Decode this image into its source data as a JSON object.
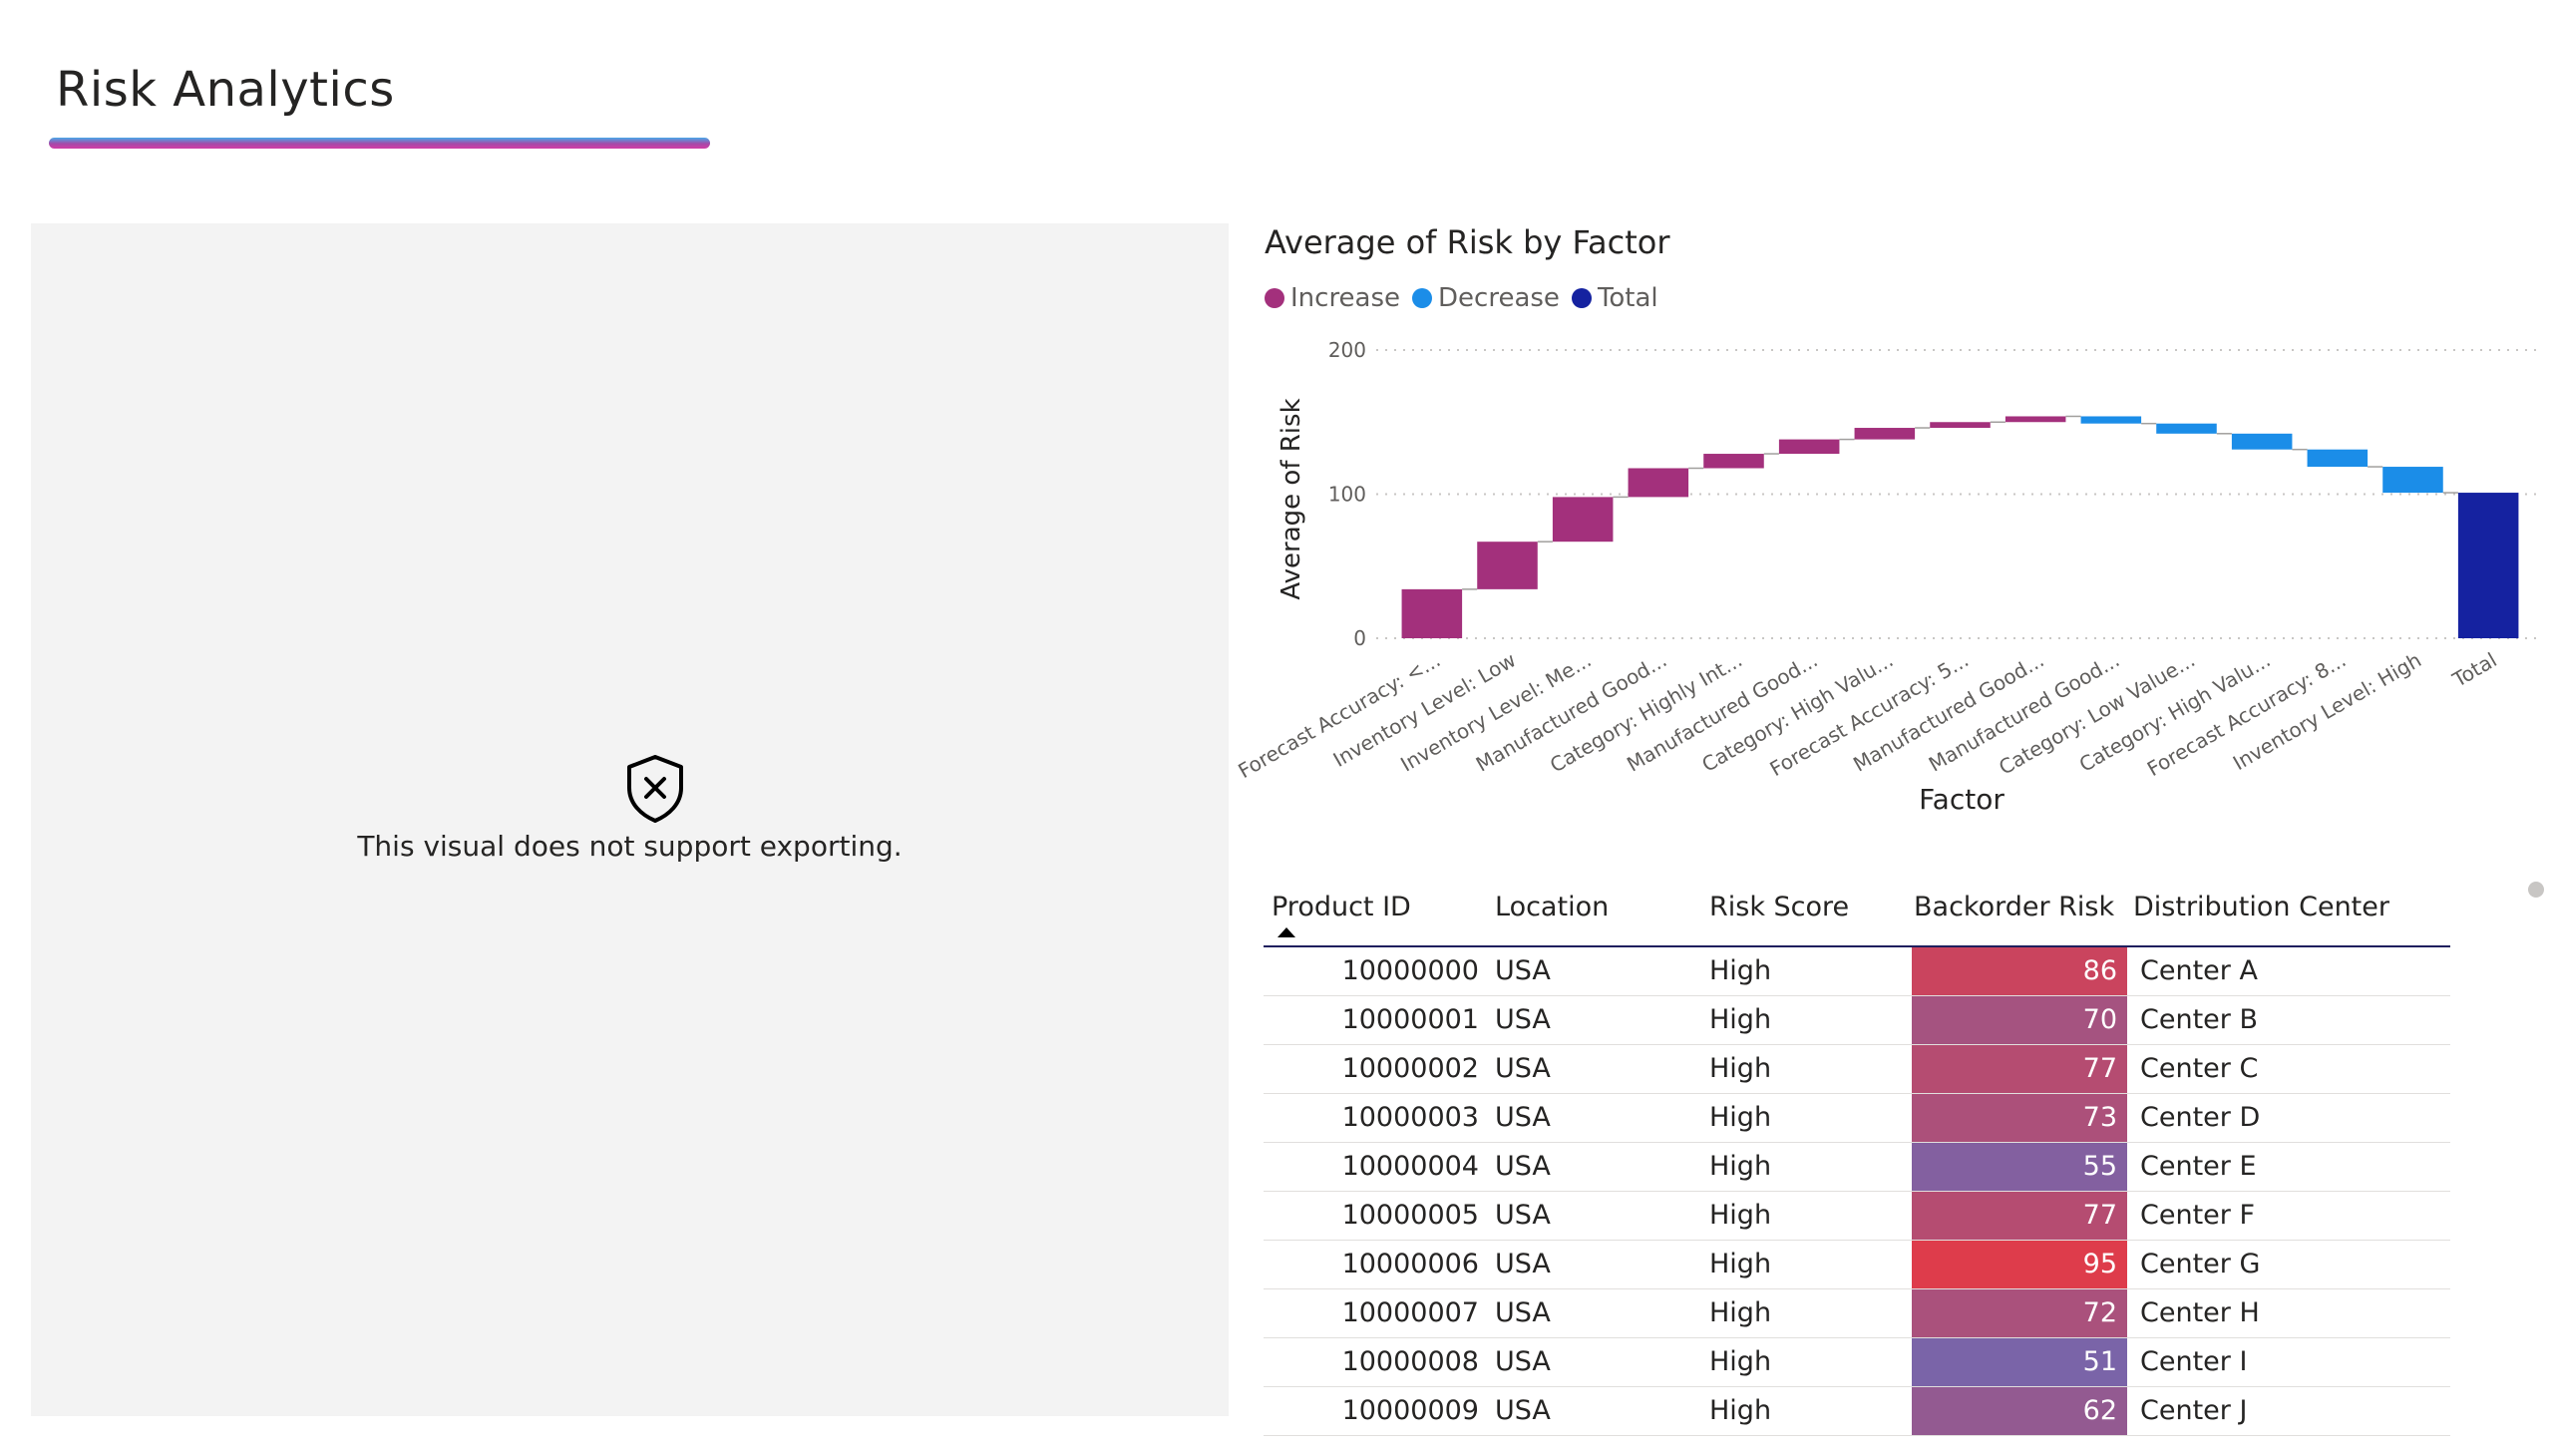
{
  "page": {
    "title": "Risk Analytics"
  },
  "left_panel": {
    "message": "This visual does not support exporting.",
    "icon": "shield-x-icon"
  },
  "chart_data": {
    "type": "waterfall",
    "title": "Average of Risk by Factor",
    "xlabel": "Factor",
    "ylabel": "Average of Risk",
    "ylim": [
      0,
      200
    ],
    "yticks": [
      0,
      100,
      200
    ],
    "grid": true,
    "legend_position": "top-left",
    "legend": [
      {
        "name": "Increase",
        "color": "#a3307c"
      },
      {
        "name": "Decrease",
        "color": "#1b8de8"
      },
      {
        "name": "Total",
        "color": "#1522a0"
      }
    ],
    "categories": [
      "Forecast Accuracy: <...",
      "Inventory Level: Low",
      "Inventory Level: Me...",
      "Manufactured Good...",
      "Category: Highly Int...",
      "Manufactured Good...",
      "Category: High Valu...",
      "Forecast Accuracy: 5...",
      "Manufactured Good...",
      "Manufactured Good...",
      "Category: Low Value...",
      "Category: High Valu...",
      "Forecast Accuracy: 8...",
      "Inventory Level: High",
      "Total"
    ],
    "values": [
      34,
      33,
      31,
      20,
      10,
      10,
      8,
      4,
      4,
      -5,
      -7,
      -11,
      -12,
      -18,
      101
    ],
    "kinds": [
      "increase",
      "increase",
      "increase",
      "increase",
      "increase",
      "increase",
      "increase",
      "increase",
      "increase",
      "decrease",
      "decrease",
      "decrease",
      "decrease",
      "decrease",
      "total"
    ]
  },
  "table": {
    "columns": [
      "Product ID",
      "Location",
      "Risk Score",
      "Backorder Risk",
      "Distribution Center"
    ],
    "sort_column": "Product ID",
    "rows": [
      {
        "id": "10000000",
        "location": "USA",
        "score": "High",
        "risk": 86,
        "dc": "Center A"
      },
      {
        "id": "10000001",
        "location": "USA",
        "score": "High",
        "risk": 70,
        "dc": "Center B"
      },
      {
        "id": "10000002",
        "location": "USA",
        "score": "High",
        "risk": 77,
        "dc": "Center C"
      },
      {
        "id": "10000003",
        "location": "USA",
        "score": "High",
        "risk": 73,
        "dc": "Center D"
      },
      {
        "id": "10000004",
        "location": "USA",
        "score": "High",
        "risk": 55,
        "dc": "Center E"
      },
      {
        "id": "10000005",
        "location": "USA",
        "score": "High",
        "risk": 77,
        "dc": "Center F"
      },
      {
        "id": "10000006",
        "location": "USA",
        "score": "High",
        "risk": 95,
        "dc": "Center G"
      },
      {
        "id": "10000007",
        "location": "USA",
        "score": "High",
        "risk": 72,
        "dc": "Center H"
      },
      {
        "id": "10000008",
        "location": "USA",
        "score": "High",
        "risk": 51,
        "dc": "Center I"
      },
      {
        "id": "10000009",
        "location": "USA",
        "score": "High",
        "risk": 62,
        "dc": "Center J"
      }
    ]
  },
  "colors": {
    "risk_low": "#7a64a8",
    "risk_high": "#de3c4b"
  }
}
